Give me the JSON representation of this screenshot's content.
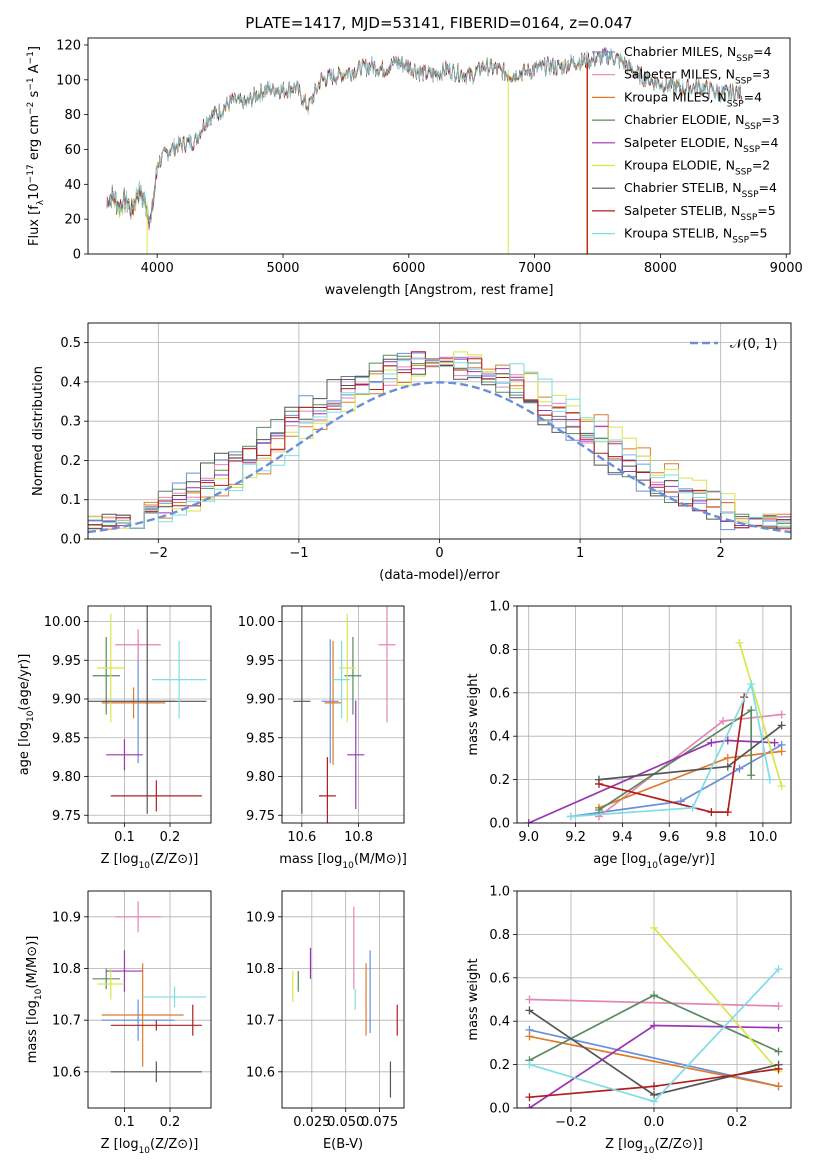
{
  "chart_data": [
    {
      "type": "line",
      "id": "spectrum",
      "title": "PLATE=1417, MJD=53141, FIBERID=0164, z=0.047",
      "xlabel": "wavelength [Angstrom, rest frame]",
      "ylabel": "Flux [fλ10⁻¹⁷ erg cm⁻² s⁻¹ A⁻¹]",
      "xlim": [
        3450,
        9030
      ],
      "ylim": [
        0,
        124
      ],
      "xticks": [
        4000,
        5000,
        6000,
        7000,
        8000,
        9000
      ],
      "yticks": [
        0,
        20,
        40,
        60,
        80,
        100,
        120
      ],
      "x": [
        3600,
        3650,
        3700,
        3750,
        3800,
        3850,
        3900,
        3950,
        4000,
        4100,
        4200,
        4300,
        4400,
        4500,
        4600,
        4700,
        4800,
        4900,
        5000,
        5100,
        5200,
        5300,
        5400,
        5500,
        5600,
        5700,
        5800,
        5900,
        6000,
        6100,
        6200,
        6300,
        6400,
        6500,
        6600,
        6700,
        6800,
        6900,
        7000,
        7100,
        7200,
        7300,
        7400,
        7500,
        7600,
        7700,
        7800,
        7900,
        8000,
        8100,
        8200,
        8300,
        8400,
        8500,
        8600,
        8650
      ],
      "y": [
        32,
        36,
        30,
        34,
        28,
        40,
        33,
        22,
        52,
        60,
        63,
        65,
        78,
        82,
        88,
        86,
        92,
        95,
        94,
        96,
        84,
        100,
        102,
        104,
        106,
        108,
        106,
        110,
        108,
        104,
        103,
        106,
        104,
        102,
        108,
        106,
        103,
        104,
        106,
        108,
        107,
        110,
        111,
        112,
        114,
        110,
        104,
        100,
        98,
        96,
        95,
        96,
        94,
        92,
        93,
        92
      ],
      "legend_location": "upper right",
      "series": [
        {
          "name": "Chabrier MILES, N_SSP=4",
          "label": "Chabrier MILES, N",
          "sub": "SSP",
          "suffix": "=4",
          "color": "#6a8fd8"
        },
        {
          "name": "Salpeter MILES, N_SSP=3",
          "label": "Salpeter MILES, N",
          "sub": "SSP",
          "suffix": "=3",
          "color": "#e586b4"
        },
        {
          "name": "Kroupa MILES, N_SSP=4",
          "label": "Kroupa MILES, N",
          "sub": "SSP",
          "suffix": "=4",
          "color": "#e07b2a"
        },
        {
          "name": "Chabrier ELODIE, N_SSP=3",
          "label": "Chabrier ELODIE, N",
          "sub": "SSP",
          "suffix": "=3",
          "color": "#5b8a5e"
        },
        {
          "name": "Salpeter ELODIE, N_SSP=4",
          "label": "Salpeter ELODIE, N",
          "sub": "SSP",
          "suffix": "=4",
          "color": "#9b34b5"
        },
        {
          "name": "Kroupa ELODIE, N_SSP=2",
          "label": "Kroupa ELODIE, N",
          "sub": "SSP",
          "suffix": "=2",
          "color": "#d8e64a"
        },
        {
          "name": "Chabrier STELIB, N_SSP=4",
          "label": "Chabrier STELIB, N",
          "sub": "SSP",
          "suffix": "=4",
          "color": "#555555"
        },
        {
          "name": "Salpeter STELIB, N_SSP=5",
          "label": "Salpeter STELIB, N",
          "sub": "SSP",
          "suffix": "=5",
          "color": "#b01f1f"
        },
        {
          "name": "Kroupa STELIB, N_SSP=5",
          "label": "Kroupa STELIB, N",
          "sub": "SSP",
          "suffix": "=5",
          "color": "#7fdde6"
        }
      ]
    },
    {
      "type": "histogram",
      "id": "residuals",
      "xlabel": "(data-model)/error",
      "ylabel": "Normed distribution",
      "xlim": [
        -2.5,
        2.5
      ],
      "ylim": [
        0,
        0.55
      ],
      "xticks": [
        -2,
        -1,
        0,
        1,
        2
      ],
      "yticks": [
        0.0,
        0.1,
        0.2,
        0.3,
        0.4,
        0.5
      ],
      "grid": true,
      "bin_width": 0.1,
      "reference_curve": {
        "name": "N(0,1)",
        "label_main": "𝒩",
        "label_rest": "(0, 1)",
        "mean": 0,
        "sigma": 1,
        "color": "#6a8fd8"
      }
    },
    {
      "type": "scatter",
      "id": "age-vs-Z",
      "xlabel_main": "Z [log",
      "xlabel_sub": "10",
      "xlabel_rest": "(Z/Z⊙)]",
      "ylabel": "age  [log₁₀(age/yr)]",
      "xlim": [
        0.02,
        0.29
      ],
      "ylim": [
        9.74,
        10.02
      ],
      "xticks": [
        0.1,
        0.2
      ],
      "yticks": [
        9.75,
        9.8,
        9.85,
        9.9,
        9.95,
        10.0
      ],
      "points": [
        {
          "x": 0.13,
          "y": 9.897,
          "xerr": 0.08,
          "yerr": 0.08,
          "color": "#6a8fd8"
        },
        {
          "x": 0.13,
          "y": 9.97,
          "xerr": 0.05,
          "yerr": 0.02,
          "color": "#e586b4"
        },
        {
          "x": 0.12,
          "y": 9.895,
          "xerr": 0.07,
          "yerr": 0.02,
          "color": "#e07b2a"
        },
        {
          "x": 0.06,
          "y": 9.93,
          "xerr": 0.03,
          "yerr": 0.05,
          "color": "#5b8a5e"
        },
        {
          "x": 0.1,
          "y": 9.828,
          "xerr": 0.04,
          "yerr": 0.02,
          "color": "#9b34b5"
        },
        {
          "x": 0.07,
          "y": 9.94,
          "xerr": 0.03,
          "yerr": 0.07,
          "color": "#d8e64a"
        },
        {
          "x": 0.15,
          "y": 9.897,
          "xerr": 0.13,
          "yerr": 0.145,
          "color": "#555555"
        },
        {
          "x": 0.17,
          "y": 9.775,
          "xerr": 0.1,
          "yerr": 0.02,
          "color": "#b01f1f"
        },
        {
          "x": 0.22,
          "y": 9.925,
          "xerr": 0.06,
          "yerr": 0.05,
          "color": "#7fdde6"
        }
      ]
    },
    {
      "type": "scatter",
      "id": "age-vs-mass",
      "xlabel_main": "mass [log",
      "xlabel_sub": "10",
      "xlabel_rest": "(M/M⊙)]",
      "xlim": [
        10.53,
        10.96
      ],
      "ylim": [
        9.74,
        10.02
      ],
      "xticks": [
        10.6,
        10.8
      ],
      "yticks": [
        9.75,
        9.8,
        9.85,
        9.9,
        9.95,
        10.0
      ],
      "points": [
        {
          "x": 10.7,
          "y": 9.897,
          "xerr": 0.03,
          "yerr": 0.08,
          "color": "#6a8fd8"
        },
        {
          "x": 10.9,
          "y": 9.97,
          "xerr": 0.03,
          "yerr": 0.1,
          "color": "#e586b4"
        },
        {
          "x": 10.71,
          "y": 9.895,
          "xerr": 0.03,
          "yerr": 0.08,
          "color": "#e07b2a"
        },
        {
          "x": 10.78,
          "y": 9.93,
          "xerr": 0.03,
          "yerr": 0.05,
          "color": "#5b8a5e"
        },
        {
          "x": 10.79,
          "y": 9.828,
          "xerr": 0.03,
          "yerr": 0.07,
          "color": "#9b34b5"
        },
        {
          "x": 10.76,
          "y": 9.94,
          "xerr": 0.03,
          "yerr": 0.07,
          "color": "#d8e64a"
        },
        {
          "x": 10.6,
          "y": 9.897,
          "xerr": 0.03,
          "yerr": 0.145,
          "color": "#555555"
        },
        {
          "x": 10.69,
          "y": 9.775,
          "xerr": 0.03,
          "yerr": 0.05,
          "color": "#b01f1f"
        },
        {
          "x": 10.74,
          "y": 9.925,
          "xerr": 0.03,
          "yerr": 0.05,
          "color": "#7fdde6"
        }
      ]
    },
    {
      "type": "line",
      "id": "weight-vs-age",
      "xlabel": "age  [log₁₀(age/yr)]",
      "ylabel": "mass weight",
      "xlim": [
        8.95,
        10.12
      ],
      "ylim": [
        0,
        1.0
      ],
      "xticks": [
        9.0,
        9.2,
        9.4,
        9.6,
        9.8,
        10.0
      ],
      "yticks": [
        0.0,
        0.2,
        0.4,
        0.6,
        0.8,
        1.0
      ],
      "series": [
        {
          "color": "#6a8fd8",
          "x": [
            9.18,
            9.65,
            9.9,
            10.08
          ],
          "y": [
            0.03,
            0.1,
            0.25,
            0.36
          ]
        },
        {
          "color": "#e586b4",
          "x": [
            9.3,
            9.83,
            10.08
          ],
          "y": [
            0.03,
            0.47,
            0.5
          ]
        },
        {
          "color": "#e07b2a",
          "x": [
            9.3,
            9.85,
            10.08
          ],
          "y": [
            0.07,
            0.3,
            0.33
          ]
        },
        {
          "color": "#5b8a5e",
          "x": [
            9.3,
            9.95,
            9.95
          ],
          "y": [
            0.06,
            0.52,
            0.22
          ]
        },
        {
          "color": "#9b34b5",
          "x": [
            9.0,
            9.78,
            9.85,
            10.05
          ],
          "y": [
            0.0,
            0.37,
            0.38,
            0.37
          ]
        },
        {
          "color": "#d8e64a",
          "x": [
            9.9,
            10.08
          ],
          "y": [
            0.83,
            0.17
          ]
        },
        {
          "color": "#555555",
          "x": [
            9.3,
            9.85,
            10.08
          ],
          "y": [
            0.2,
            0.26,
            0.45
          ]
        },
        {
          "color": "#b01f1f",
          "x": [
            9.3,
            9.78,
            9.85,
            9.92
          ],
          "y": [
            0.18,
            0.05,
            0.05,
            0.58
          ]
        },
        {
          "color": "#7fdde6",
          "x": [
            9.18,
            9.7,
            9.95,
            10.03
          ],
          "y": [
            0.03,
            0.07,
            0.64,
            0.2
          ]
        }
      ]
    },
    {
      "type": "scatter",
      "id": "mass-vs-Z",
      "xlabel_main": "Z [log",
      "xlabel_sub": "10",
      "xlabel_rest": "(Z/Z⊙)]",
      "ylabel": "mass [log₁₀(M/M⊙)]",
      "xlim": [
        0.02,
        0.29
      ],
      "ylim": [
        10.53,
        10.95
      ],
      "xticks": [
        0.1,
        0.2
      ],
      "yticks": [
        10.6,
        10.7,
        10.8,
        10.9
      ],
      "points": [
        {
          "x": 0.13,
          "y": 10.7,
          "xerr": 0.08,
          "yerr": 0.04,
          "color": "#6a8fd8"
        },
        {
          "x": 0.13,
          "y": 10.9,
          "xerr": 0.05,
          "yerr": 0.03,
          "color": "#e586b4"
        },
        {
          "x": 0.14,
          "y": 10.71,
          "xerr": 0.09,
          "yerr": 0.1,
          "color": "#e07b2a"
        },
        {
          "x": 0.06,
          "y": 10.78,
          "xerr": 0.03,
          "yerr": 0.02,
          "color": "#5b8a5e"
        },
        {
          "x": 0.1,
          "y": 10.795,
          "xerr": 0.04,
          "yerr": 0.04,
          "color": "#9b34b5"
        },
        {
          "x": 0.07,
          "y": 10.77,
          "xerr": 0.03,
          "yerr": 0.03,
          "color": "#d8e64a"
        },
        {
          "x": 0.17,
          "y": 10.6,
          "xerr": 0.1,
          "yerr": 0.02,
          "color": "#555555"
        },
        {
          "x": 0.17,
          "y": 10.69,
          "xerr": 0.1,
          "yerr": 0.01,
          "color": "#b01f1f"
        },
        {
          "x": 0.21,
          "y": 10.745,
          "xerr": 0.07,
          "yerr": 0.02,
          "color": "#7fdde6"
        }
      ],
      "extra_ticks": [
        {
          "x": 0.25,
          "y0": 10.67,
          "y1": 10.73,
          "color": "#b01f1f"
        }
      ]
    },
    {
      "type": "scatter",
      "id": "mass-vs-EBV",
      "xlabel": "E(B-V)",
      "xlim": [
        0.003,
        0.093
      ],
      "ylim": [
        10.53,
        10.95
      ],
      "xticks": [
        0.025,
        0.05,
        0.075
      ],
      "xticklabels": [
        "0.025",
        "0.050",
        "0.075"
      ],
      "yticks": [
        10.6,
        10.7,
        10.8,
        10.9
      ],
      "points": [
        {
          "x": 0.068,
          "y": 10.755,
          "xerr": 0,
          "yerr": 0.08,
          "color": "#6a8fd8"
        },
        {
          "x": 0.056,
          "y": 10.84,
          "xerr": 0,
          "yerr": 0.08,
          "color": "#e586b4"
        },
        {
          "x": 0.065,
          "y": 10.74,
          "xerr": 0,
          "yerr": 0.07,
          "color": "#e07b2a"
        },
        {
          "x": 0.015,
          "y": 10.775,
          "xerr": 0,
          "yerr": 0.02,
          "color": "#5b8a5e"
        },
        {
          "x": 0.024,
          "y": 10.81,
          "xerr": 0,
          "yerr": 0.03,
          "color": "#9b34b5"
        },
        {
          "x": 0.011,
          "y": 10.765,
          "xerr": 0,
          "yerr": 0.03,
          "color": "#d8e64a"
        },
        {
          "x": 0.083,
          "y": 10.585,
          "xerr": 0,
          "yerr": 0.035,
          "color": "#555555"
        },
        {
          "x": 0.088,
          "y": 10.7,
          "xerr": 0,
          "yerr": 0.03,
          "color": "#b01f1f"
        },
        {
          "x": 0.057,
          "y": 10.74,
          "xerr": 0,
          "yerr": 0.02,
          "color": "#7fdde6"
        }
      ]
    },
    {
      "type": "line",
      "id": "weight-vs-Z",
      "xlabel_main": "Z [log",
      "xlabel_sub": "10",
      "xlabel_rest": "(Z/Z⊙)]",
      "ylabel": "mass weight",
      "xlim": [
        -0.33,
        0.33
      ],
      "ylim": [
        0,
        1.0
      ],
      "xticks": [
        -0.2,
        0.0,
        0.2
      ],
      "xticklabels": [
        "−0.2",
        "0.0",
        "0.2"
      ],
      "yticks": [
        0.0,
        0.2,
        0.4,
        0.6,
        0.8,
        1.0
      ],
      "series": [
        {
          "color": "#6a8fd8",
          "x": [
            -0.3,
            0.3
          ],
          "y": [
            0.36,
            0.1
          ]
        },
        {
          "color": "#e586b4",
          "x": [
            -0.3,
            0.3
          ],
          "y": [
            0.5,
            0.47
          ]
        },
        {
          "color": "#e07b2a",
          "x": [
            -0.3,
            0.3
          ],
          "y": [
            0.33,
            0.1
          ]
        },
        {
          "color": "#5b8a5e",
          "x": [
            -0.3,
            0.0,
            0.3
          ],
          "y": [
            0.22,
            0.52,
            0.26
          ]
        },
        {
          "color": "#9b34b5",
          "x": [
            -0.3,
            0.0,
            0.3
          ],
          "y": [
            0.0,
            0.38,
            0.37
          ]
        },
        {
          "color": "#d8e64a",
          "x": [
            0.0,
            0.3
          ],
          "y": [
            0.83,
            0.17
          ]
        },
        {
          "color": "#555555",
          "x": [
            -0.3,
            0.0,
            0.3
          ],
          "y": [
            0.45,
            0.06,
            0.2
          ]
        },
        {
          "color": "#b01f1f",
          "x": [
            -0.3,
            0.0,
            0.3
          ],
          "y": [
            0.05,
            0.1,
            0.18
          ]
        },
        {
          "color": "#7fdde6",
          "x": [
            -0.3,
            0.0,
            0.3
          ],
          "y": [
            0.2,
            0.03,
            0.64
          ]
        }
      ]
    }
  ]
}
